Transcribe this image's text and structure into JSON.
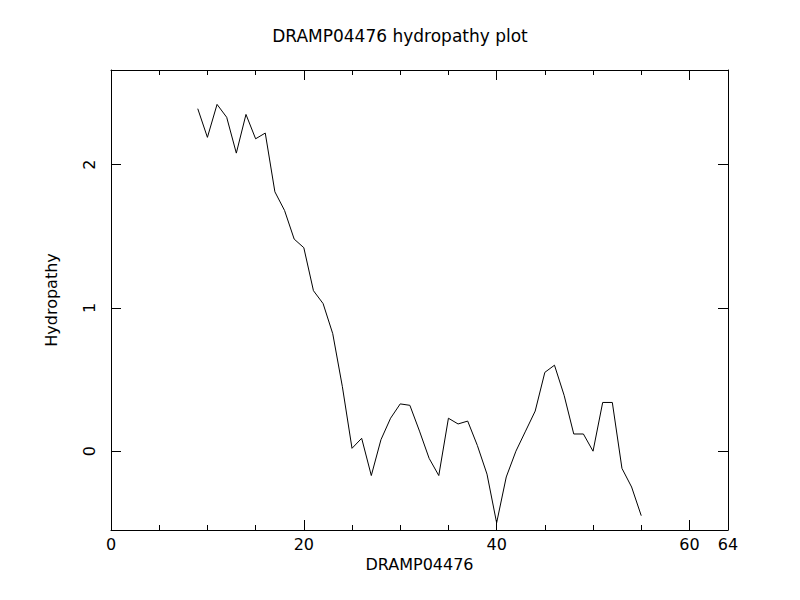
{
  "chart_data": {
    "type": "line",
    "title": "DRAMP04476 hydropathy plot",
    "x_label": "DRAMP04476",
    "y_label": "Hydropathy",
    "x": [
      9,
      10,
      11,
      12,
      13,
      14,
      15,
      16,
      17,
      18,
      19,
      20,
      21,
      22,
      23,
      24,
      25,
      26,
      27,
      28,
      29,
      30,
      31,
      32,
      33,
      34,
      35,
      36,
      37,
      38,
      39,
      40,
      41,
      42,
      43,
      44,
      45,
      46,
      47,
      48,
      49,
      50,
      51,
      52,
      53,
      54,
      55
    ],
    "values": [
      2.39,
      2.19,
      2.42,
      2.33,
      2.08,
      2.35,
      2.18,
      2.22,
      1.81,
      1.68,
      1.48,
      1.42,
      1.12,
      1.03,
      0.82,
      0.45,
      0.02,
      0.09,
      -0.17,
      0.08,
      0.23,
      0.33,
      0.32,
      0.14,
      -0.05,
      -0.17,
      0.23,
      0.19,
      0.21,
      0.04,
      -0.16,
      -0.5,
      -0.18,
      0.0,
      0.14,
      0.28,
      0.55,
      0.6,
      0.39,
      0.12,
      0.12,
      0.0,
      0.34,
      0.34,
      -0.12,
      -0.25,
      -0.45
    ],
    "color": "#000000",
    "xlim": [
      0,
      64
    ],
    "xticks": [
      0,
      20,
      40,
      60
    ],
    "ylim": [
      -0.55,
      2.66
    ],
    "yticks": [
      0,
      1,
      2
    ],
    "grid": false
  }
}
